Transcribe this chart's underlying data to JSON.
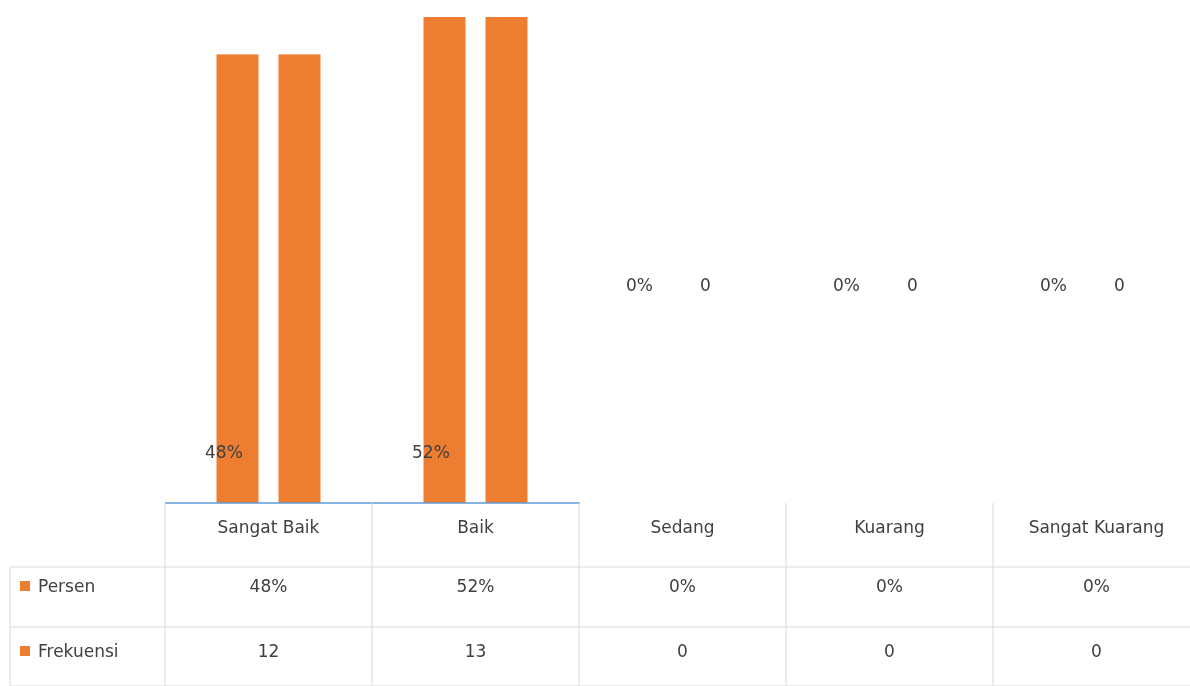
{
  "chart_data": {
    "type": "bar",
    "data_labels": true,
    "legend": "bottom left",
    "categories": [
      "Sangat Baik",
      "Baik",
      "Sedang",
      "Kuarang",
      "Sangat Kuarang"
    ],
    "series": [
      {
        "name": "Persen",
        "color": "#ed7d31",
        "values": [
          48,
          52,
          0,
          0,
          0
        ],
        "value_labels": [
          "48%",
          "52%",
          "0%",
          "0%",
          "0%"
        ]
      },
      {
        "name": "Frekuensi",
        "color": "#ed7d31",
        "axis": "y2",
        "values": [
          12,
          13,
          0,
          0,
          0
        ],
        "value_labels": [
          "12",
          "13",
          "0",
          "0",
          "0"
        ]
      }
    ],
    "annotations": [
      "48%",
      "52%",
      "0%",
      "0",
      "0%",
      "0",
      "0%",
      "0"
    ]
  }
}
